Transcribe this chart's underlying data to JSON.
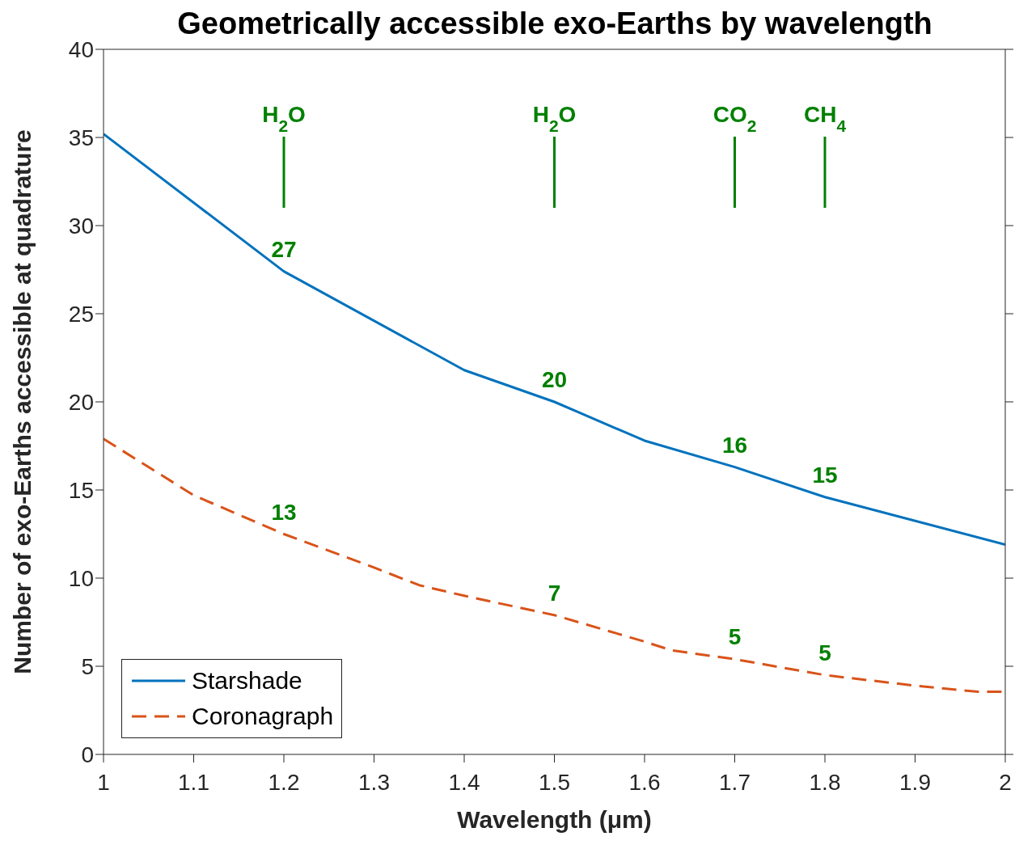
{
  "chart_data": {
    "type": "line",
    "title": "Geometrically accessible exo-Earths by wavelength",
    "xlabel": "Wavelength (μm)",
    "ylabel": "Number of exo-Earths accessible at quadrature",
    "xlim": [
      1,
      2
    ],
    "xticks": [
      1,
      1.1,
      1.2,
      1.3,
      1.4,
      1.5,
      1.6,
      1.7,
      1.8,
      1.9,
      2
    ],
    "ylim": [
      0,
      40
    ],
    "yticks": [
      0,
      5,
      10,
      15,
      20,
      25,
      30,
      35,
      40
    ],
    "legend": "bottom left",
    "marker": "none",
    "ref_lines": [
      {
        "axis": "x",
        "value": 1.2,
        "label": "H$_{2}$O",
        "color": "#008000"
      },
      {
        "axis": "x",
        "value": 1.5,
        "label": "H$_{2}$O",
        "color": "#008000"
      },
      {
        "axis": "x",
        "value": 1.7,
        "label": "CO$_{2}$",
        "color": "#008000"
      },
      {
        "axis": "x",
        "value": 1.8,
        "label": "CH$_{4}$",
        "color": "#008000"
      }
    ],
    "series": [
      {
        "name": "Starshade",
        "color": "#0072bd",
        "line_style": "solid",
        "x": [
          1,
          1.2,
          1.4,
          1.5,
          1.6,
          1.7,
          1.8,
          2
        ],
        "values": [
          35.2,
          27.4,
          21.8,
          20.0,
          17.8,
          16.3,
          14.6,
          11.9
        ],
        "value_labels": [
          null,
          "27",
          null,
          "20",
          null,
          "16",
          "15",
          null
        ]
      },
      {
        "name": "Coronagraph",
        "color": "#d95319",
        "line_style": "dashed",
        "x": [
          1,
          1.1,
          1.2,
          1.3,
          1.35,
          1.4,
          1.5,
          1.6,
          1.63,
          1.7,
          1.8,
          1.9,
          1.97,
          2
        ],
        "values": [
          17.9,
          14.7,
          12.5,
          10.6,
          9.6,
          9.0,
          7.9,
          6.4,
          5.9,
          5.4,
          4.5,
          3.9,
          3.55,
          3.55
        ],
        "value_labels": [
          null,
          null,
          "13",
          null,
          null,
          null,
          null,
          null,
          null,
          "5",
          "5",
          null,
          null,
          null
        ]
      }
    ],
    "annotations": [
      {
        "text": "7",
        "x": 1.5,
        "y": 7.9
      }
    ]
  }
}
